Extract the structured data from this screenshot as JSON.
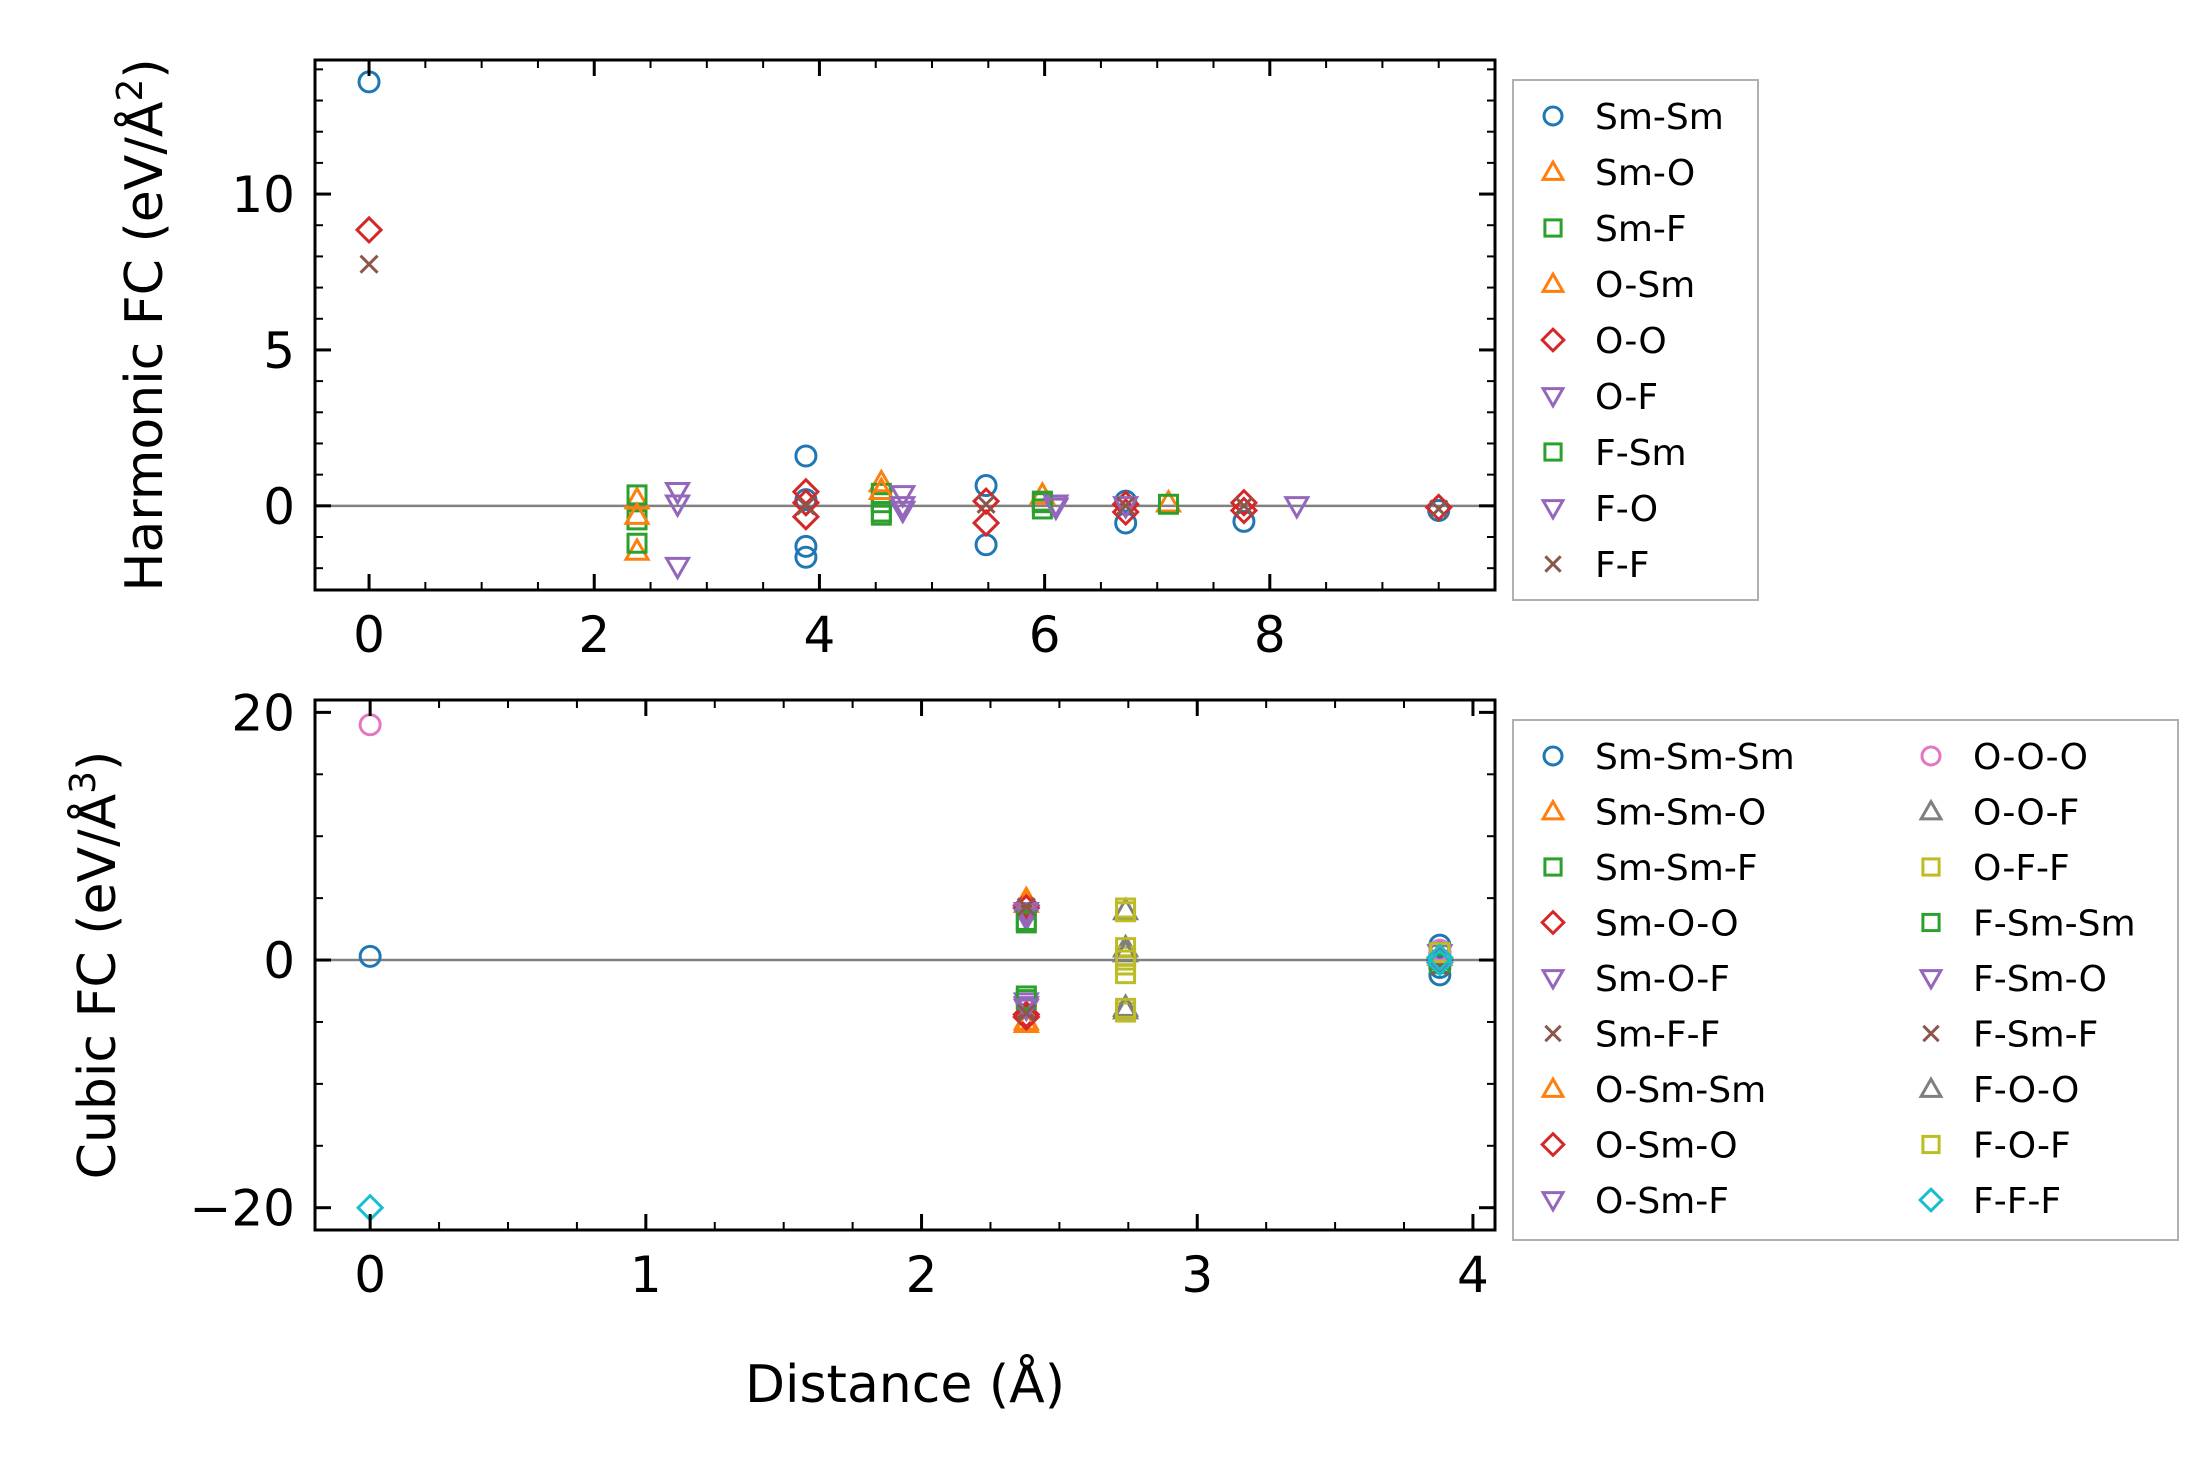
{
  "chart_data": [
    {
      "type": "scatter",
      "panel": "top",
      "title": "",
      "xlabel": "",
      "ylabel": "Harmonic FC (eV/Å²)",
      "ylabel_main": "Harmonic FC (eV/Å",
      "ylabel_sup": "2",
      "ylabel_close": ")",
      "xlim": [
        -0.48,
        10.0
      ],
      "ylim": [
        -2.7,
        14.3
      ],
      "xticks": [
        0,
        2,
        4,
        6,
        8
      ],
      "xtick_labels": [
        "0",
        "2",
        "4",
        "6",
        "8"
      ],
      "yticks": [
        0,
        5,
        10
      ],
      "ytick_labels": [
        "0",
        "5",
        "10"
      ],
      "zero_line": 0,
      "grid": false,
      "legend_position": "outside-right",
      "series": [
        {
          "name": "Sm-Sm",
          "marker": "circle",
          "color": "#1f77b4",
          "points": [
            [
              0,
              13.6
            ],
            [
              3.88,
              1.6
            ],
            [
              3.88,
              0.2
            ],
            [
              3.88,
              -1.3
            ],
            [
              3.88,
              -1.65
            ],
            [
              5.48,
              0.65
            ],
            [
              5.48,
              -1.25
            ],
            [
              6.72,
              0.15
            ],
            [
              6.72,
              -0.55
            ],
            [
              7.77,
              -0.5
            ],
            [
              9.5,
              -0.15
            ]
          ]
        },
        {
          "name": "Sm-O",
          "marker": "triangle-up",
          "color": "#ff7f0e",
          "points": [
            [
              2.38,
              0.2
            ],
            [
              2.38,
              -1.45
            ],
            [
              4.55,
              0.75
            ],
            [
              5.98,
              0.35
            ],
            [
              7.1,
              0.1
            ]
          ]
        },
        {
          "name": "Sm-F",
          "marker": "square",
          "color": "#2ca02c",
          "points": [
            [
              2.38,
              0.35
            ],
            [
              2.38,
              -0.45
            ],
            [
              2.38,
              -1.2
            ],
            [
              4.55,
              0.4
            ],
            [
              4.55,
              0.1
            ],
            [
              4.55,
              -0.2
            ],
            [
              5.98,
              0.1
            ],
            [
              5.98,
              -0.1
            ],
            [
              7.1,
              0.05
            ]
          ]
        },
        {
          "name": "O-Sm",
          "marker": "triangle-up",
          "color": "#ff7f0e",
          "points": [
            [
              2.38,
              -0.3
            ],
            [
              4.55,
              0.5
            ]
          ]
        },
        {
          "name": "O-O",
          "marker": "diamond",
          "color": "#d62728",
          "points": [
            [
              0,
              8.85
            ],
            [
              3.88,
              0.45
            ],
            [
              3.88,
              0.1
            ],
            [
              3.88,
              -0.35
            ],
            [
              5.48,
              0.15
            ],
            [
              5.48,
              -0.55
            ],
            [
              6.72,
              0.05
            ],
            [
              6.72,
              -0.2
            ],
            [
              7.77,
              0.1
            ],
            [
              7.77,
              -0.15
            ],
            [
              9.5,
              -0.05
            ]
          ]
        },
        {
          "name": "O-F",
          "marker": "triangle-down",
          "color": "#9467bd",
          "points": [
            [
              2.74,
              0.45
            ],
            [
              2.74,
              0.05
            ],
            [
              2.74,
              -1.95
            ],
            [
              4.74,
              0.35
            ],
            [
              4.74,
              0.0
            ],
            [
              6.1,
              0.05
            ],
            [
              6.72,
              0.0
            ],
            [
              8.24,
              0.0
            ]
          ]
        },
        {
          "name": "F-Sm",
          "marker": "square",
          "color": "#2ca02c",
          "points": [
            [
              4.55,
              -0.3
            ],
            [
              5.98,
              0.15
            ]
          ]
        },
        {
          "name": "F-O",
          "marker": "triangle-down",
          "color": "#9467bd",
          "points": [
            [
              4.74,
              -0.15
            ],
            [
              6.1,
              -0.05
            ]
          ]
        },
        {
          "name": "F-F",
          "marker": "x",
          "color": "#8c564b",
          "points": [
            [
              0,
              7.75
            ],
            [
              3.88,
              0.0
            ],
            [
              5.48,
              0.05
            ],
            [
              6.72,
              0.0
            ],
            [
              7.77,
              0.0
            ],
            [
              9.5,
              -0.1
            ]
          ]
        }
      ]
    },
    {
      "type": "scatter",
      "panel": "bottom",
      "title": "",
      "xlabel": "Distance (Å)",
      "ylabel": "Cubic FC (eV/Å³)",
      "ylabel_main": "Cubic FC (eV/Å",
      "ylabel_sup": "3",
      "ylabel_close": ")",
      "xlim": [
        -0.2,
        4.08
      ],
      "ylim": [
        -21.8,
        21.0
      ],
      "xticks": [
        0,
        1,
        2,
        3,
        4
      ],
      "xtick_labels": [
        "0",
        "1",
        "2",
        "3",
        "4"
      ],
      "yticks": [
        -20,
        0,
        20
      ],
      "ytick_labels": [
        "−20",
        "0",
        "20"
      ],
      "zero_line": 0,
      "grid": false,
      "legend_position": "outside-right",
      "legend_columns": 2,
      "series": [
        {
          "name": "Sm-Sm-Sm",
          "marker": "circle",
          "color": "#1f77b4",
          "points": [
            [
              0,
              0.3
            ],
            [
              3.88,
              1.2
            ],
            [
              3.88,
              0.6
            ],
            [
              3.88,
              0.0
            ],
            [
              3.88,
              -0.6
            ],
            [
              3.88,
              -1.2
            ]
          ]
        },
        {
          "name": "Sm-Sm-O",
          "marker": "triangle-up",
          "color": "#ff7f0e",
          "points": [
            [
              2.38,
              4.9
            ],
            [
              2.38,
              -4.9
            ],
            [
              3.88,
              0.3
            ]
          ]
        },
        {
          "name": "Sm-Sm-F",
          "marker": "square",
          "color": "#2ca02c",
          "points": [
            [
              2.38,
              3.0
            ],
            [
              2.38,
              -2.9
            ],
            [
              3.88,
              -0.3
            ]
          ]
        },
        {
          "name": "Sm-O-O",
          "marker": "diamond",
          "color": "#d62728",
          "points": [
            [
              2.38,
              4.4
            ],
            [
              2.38,
              -4.4
            ],
            [
              3.88,
              0.0
            ]
          ]
        },
        {
          "name": "Sm-O-F",
          "marker": "triangle-down",
          "color": "#9467bd",
          "points": [
            [
              2.38,
              3.7
            ],
            [
              2.38,
              -3.7
            ],
            [
              3.88,
              0.5
            ]
          ]
        },
        {
          "name": "Sm-F-F",
          "marker": "x",
          "color": "#8c564b",
          "points": [
            [
              2.38,
              4.0
            ],
            [
              2.38,
              -4.0
            ],
            [
              3.88,
              -0.5
            ]
          ]
        },
        {
          "name": "O-Sm-Sm",
          "marker": "triangle-up",
          "color": "#ff7f0e",
          "points": [
            [
              2.38,
              4.6
            ],
            [
              2.38,
              -5.1
            ]
          ]
        },
        {
          "name": "O-Sm-O",
          "marker": "diamond",
          "color": "#d62728",
          "points": [
            [
              2.38,
              4.2
            ],
            [
              2.38,
              -4.6
            ]
          ]
        },
        {
          "name": "O-Sm-F",
          "marker": "triangle-down",
          "color": "#9467bd",
          "points": [
            [
              2.38,
              3.4
            ],
            [
              2.38,
              -3.4
            ]
          ]
        },
        {
          "name": "O-O-O",
          "marker": "circle",
          "color": "#e377c2",
          "points": [
            [
              0,
              19.0
            ],
            [
              3.88,
              0.8
            ]
          ]
        },
        {
          "name": "O-O-F",
          "marker": "triangle-up",
          "color": "#7f7f7f",
          "points": [
            [
              2.74,
              4.0
            ],
            [
              2.74,
              1.0
            ],
            [
              2.74,
              -4.0
            ]
          ]
        },
        {
          "name": "O-F-F",
          "marker": "square",
          "color": "#bcbd22",
          "points": [
            [
              2.74,
              4.2
            ],
            [
              2.74,
              1.0
            ],
            [
              2.74,
              0.3
            ],
            [
              2.74,
              -0.4
            ],
            [
              2.74,
              -1.1
            ],
            [
              2.74,
              -4.2
            ],
            [
              3.88,
              0.6
            ]
          ]
        },
        {
          "name": "F-Sm-Sm",
          "marker": "square",
          "color": "#2ca02c",
          "points": [
            [
              2.38,
              3.2
            ],
            [
              2.38,
              -3.2
            ]
          ]
        },
        {
          "name": "F-Sm-O",
          "marker": "triangle-down",
          "color": "#9467bd",
          "points": [
            [
              2.38,
              3.9
            ],
            [
              2.38,
              -3.9
            ]
          ]
        },
        {
          "name": "F-Sm-F",
          "marker": "x",
          "color": "#8c564b",
          "points": [
            [
              2.38,
              4.3
            ],
            [
              2.38,
              -4.3
            ]
          ]
        },
        {
          "name": "F-O-O",
          "marker": "triangle-up",
          "color": "#7f7f7f",
          "points": [
            [
              2.74,
              -3.8
            ],
            [
              2.74,
              0.6
            ]
          ]
        },
        {
          "name": "F-O-F",
          "marker": "square",
          "color": "#bcbd22",
          "points": [
            [
              2.74,
              0.0
            ],
            [
              2.74,
              3.9
            ],
            [
              2.74,
              -3.9
            ]
          ]
        },
        {
          "name": "F-F-F",
          "marker": "diamond",
          "color": "#17becf",
          "points": [
            [
              0,
              -20.0
            ],
            [
              3.88,
              -0.2
            ],
            [
              3.88,
              0.2
            ]
          ]
        }
      ]
    }
  ]
}
